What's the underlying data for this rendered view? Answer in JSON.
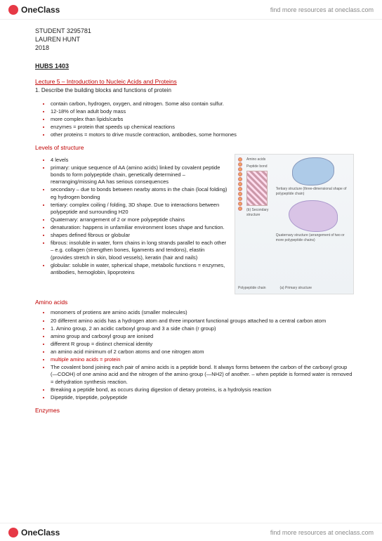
{
  "brand": {
    "name": "OneClass",
    "tagline": "find more resources at oneclass.com"
  },
  "student": {
    "id": "STUDENT 3295781",
    "name": "LAUREN HUNT",
    "year": "2018"
  },
  "course": "HUBS 1403",
  "lecture": {
    "title": "Lecture 5 – Introduction to Nucleic Acids and Proteins",
    "objective": "1.  Describe the building blocks and functions of protein"
  },
  "intro_bullets": [
    "contain carbon, hydrogen, oxygen, and nitrogen. Some also contain sulfur.",
    "12-18% of lean adult body mass",
    "more complex than lipids/carbs",
    "enzymes = protein that speeds up chemical reactions",
    "other proteins = motors to drive muscle contraction, antibodies, some hormones"
  ],
  "sections": {
    "levels": {
      "heading": "Levels of structure",
      "bullets": [
        "4 levels",
        "primary: unique sequence of AA (amino acids) linked by covalent peptide bonds to form polypeptide chain, genetically determined – rearranging/missing AA has serious consequences",
        "secondary – due to bonds between nearby atoms in the chain (local folding) eg hydrogen bonding",
        "tertiary: complex coiling / folding, 3D shape. Due to interactions between polypeptide and surrounding H20",
        "Quaternary: arrangement of 2 or more polypeptide chains",
        "denaturation: happens in unfamiliar environment loses shape and function.",
        "shapes defined fibrous or globular",
        "fibrous: insoluble in water, form chains in long strands parallel to each other – e.g. collagen (strengthen bones, ligaments and tendons), elastin (provides stretch in skin, blood vessels), keratin (hair and nails)",
        "globular: soluble in water, spherical shape, metabolic functions = enzymes, antibodies, hemoglobin, lipoproteins"
      ],
      "diagram_labels": {
        "amino": "Amino acids",
        "peptide": "Peptide bond",
        "primary": "(a) Primary structure",
        "polychain": "Polypeptide chain",
        "secondary": "(b) Secondary structure",
        "tertiary": "Tertiary structure (three-dimensional shape of polypeptide chain)",
        "quaternary": "Quaternary structure (arrangement of two or more polypeptide chains)"
      }
    },
    "amino": {
      "heading": "Amino acids",
      "bullets": [
        "monomers of protiens are amino acids (smaller molecules)",
        "20 different amino acids has a hydrogen atom and three important functional groups attached to a central carbon atom",
        "1. Amino group, 2 an acidic carboxyl group and 3 a side chain (r group)",
        "amino group and carboxyl group are ionised",
        "different R group = distinct chemical identity",
        "an amino acid minimum of 2 carbon atoms and one nitrogen atom"
      ],
      "red_line": "multiple amino acids = protein",
      "bullets2": [
        "The covalent bond joining each pair of amino acids is a peptide bond. It always forms between the carbon of the carboxyl group (—COOH) of one amino acid and the nitrogen of the amino group (—NH2) of another. – when peptide is formed water is removed = dehydration synthesis reaction.",
        "Breaking a peptide bond, as occurs during digestion of dietary proteins, is a hydrolysis reaction",
        "Dipeptide, tripeptide, polypeptide"
      ]
    },
    "enzymes": {
      "heading": "Enzymes"
    }
  }
}
